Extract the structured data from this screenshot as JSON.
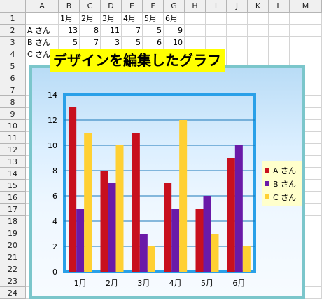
{
  "columns": [
    "A",
    "B",
    "C",
    "D",
    "E",
    "F",
    "G",
    "H",
    "I",
    "J",
    "K",
    "L",
    "M"
  ],
  "rows": [
    "1",
    "2",
    "3",
    "4",
    "5",
    "6",
    "7",
    "8",
    "9",
    "10",
    "11",
    "12",
    "13",
    "14",
    "15",
    "16",
    "17",
    "18",
    "19",
    "20",
    "21",
    "22",
    "23",
    "24"
  ],
  "cells": {
    "header_row": [
      "1月",
      "2月",
      "3月",
      "4月",
      "5月",
      "6月"
    ],
    "data_rows": [
      {
        "name": "A さん",
        "values": [
          "13",
          "8",
          "11",
          "7",
          "5",
          "9"
        ]
      },
      {
        "name": "B さん",
        "values": [
          "5",
          "7",
          "3",
          "5",
          "6",
          "10"
        ]
      },
      {
        "name": "C さん",
        "values": [
          "",
          "",
          "",
          "",
          "",
          ""
        ]
      }
    ]
  },
  "chart_title": "デザインを編集したグラフ",
  "chart_data": {
    "type": "bar",
    "categories": [
      "1月",
      "2月",
      "3月",
      "4月",
      "5月",
      "6月"
    ],
    "series": [
      {
        "name": "A さん",
        "values": [
          13,
          8,
          11,
          7,
          5,
          9
        ],
        "color": "#c8101e"
      },
      {
        "name": "B さん",
        "values": [
          5,
          7,
          3,
          5,
          6,
          10
        ],
        "color": "#6a1aa8"
      },
      {
        "name": "C さん",
        "values": [
          11,
          10,
          2,
          12,
          3,
          2
        ],
        "color": "#ffd033"
      }
    ],
    "yticks": [
      "0",
      "2",
      "4",
      "6",
      "8",
      "10",
      "12",
      "14"
    ],
    "ylim": [
      0,
      14
    ],
    "grid": true,
    "legend": "right"
  },
  "colors": {
    "frame": "#7bc6cb",
    "plot_border": "#2aa0e8",
    "title_bg": "#ffff00",
    "legend_bg": "#ffffcc",
    "gridline": "#1b78b8"
  }
}
